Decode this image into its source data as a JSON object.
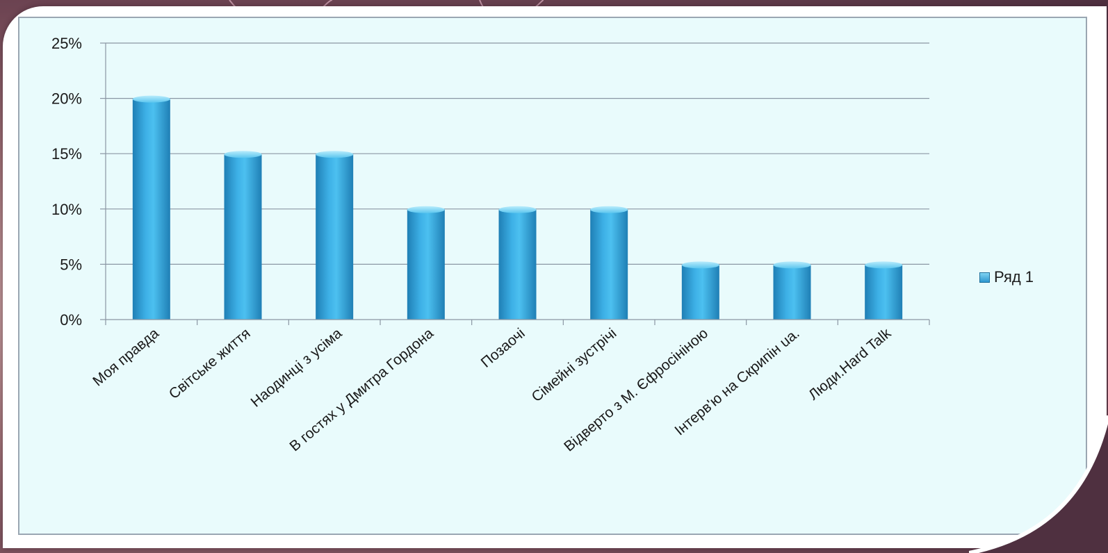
{
  "chart_data": {
    "type": "bar",
    "categories": [
      "Моя правда",
      "Світське життя",
      "Наодинці з усіма",
      "В гостях у Дмитра Гордона",
      "Позаочі",
      "Сімейні зустрічі",
      "Відверто з М. Єфросініною",
      "Інтерв'ю на Скрипін ua.",
      "Люди.Hard Talk"
    ],
    "series": [
      {
        "name": "Ряд 1",
        "values": [
          20,
          15,
          15,
          10,
          10,
          10,
          5,
          5,
          5
        ]
      }
    ],
    "ylim": [
      0,
      25
    ],
    "yticks": [
      "0%",
      "5%",
      "10%",
      "15%",
      "20%",
      "25%"
    ],
    "grid": true,
    "legend_position": "right",
    "colors": {
      "bar_light": "#7fd6f5",
      "bar_mid": "#3db0e6",
      "bar_dark": "#1f7fb5",
      "grid": "#8a96a3"
    }
  }
}
